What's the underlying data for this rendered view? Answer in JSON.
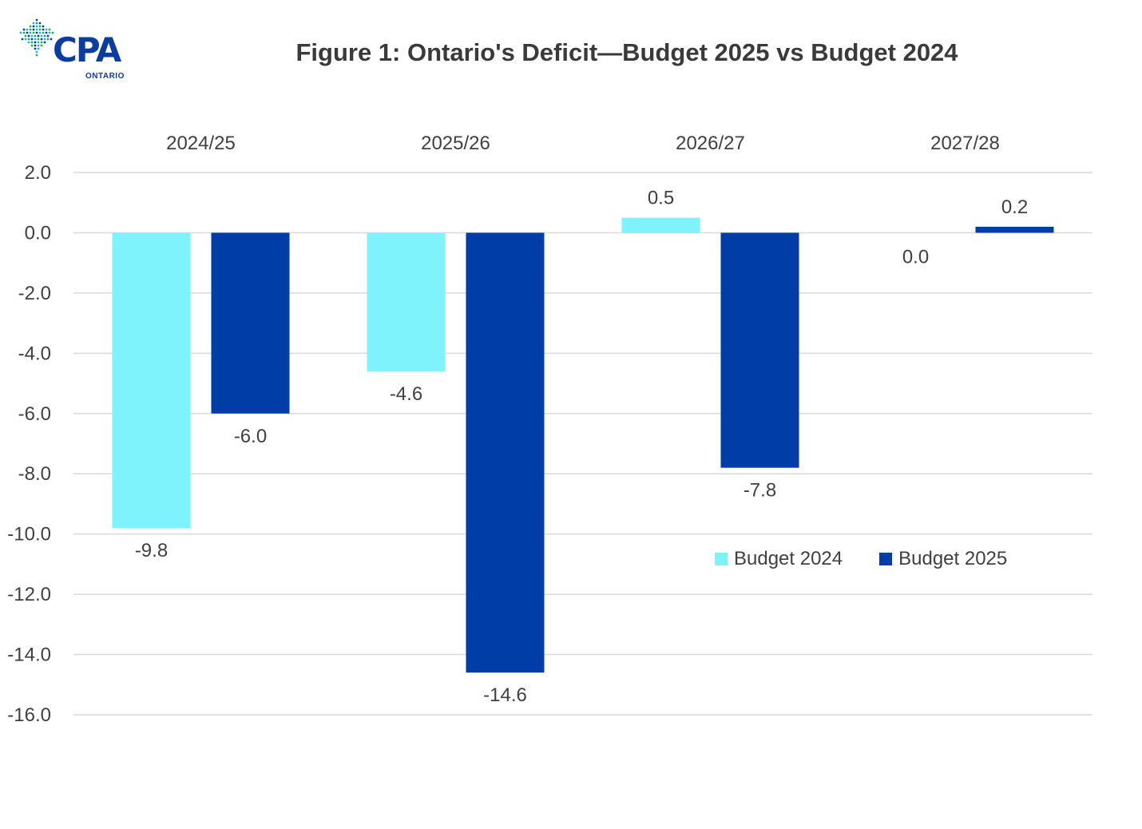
{
  "logo": {
    "text": "CPA",
    "subtext": "ONTARIO",
    "colors": [
      "#0a3d9e",
      "#1db4e8",
      "#2aa84a"
    ]
  },
  "chart_data": {
    "type": "bar",
    "title": "Figure 1: Ontario's Deficit—Budget 2025 vs Budget 2024",
    "categories": [
      "2024/25",
      "2025/26",
      "2026/27",
      "2027/28"
    ],
    "category_axis_position": "top",
    "series": [
      {
        "name": "Budget 2024",
        "color": "#7ff3fb",
        "values": [
          -9.8,
          -4.6,
          0.5,
          0.0
        ]
      },
      {
        "name": "Budget 2025",
        "color": "#003da6",
        "values": [
          -6.0,
          -14.6,
          -7.8,
          0.2
        ]
      }
    ],
    "data_labels": [
      [
        "-9.8",
        "-4.6",
        "0.5",
        "0.0"
      ],
      [
        "-6.0",
        "-14.6",
        "-7.8",
        "0.2"
      ]
    ],
    "ylim": [
      -16.0,
      2.0
    ],
    "yticks": [
      2.0,
      0.0,
      -2.0,
      -4.0,
      -6.0,
      -8.0,
      -10.0,
      -12.0,
      -14.0,
      -16.0
    ],
    "ytick_labels": [
      "2.0",
      "0.0",
      "-2.0",
      "-4.0",
      "-6.0",
      "-8.0",
      "-10.0",
      "-12.0",
      "-14.0",
      "-16.0"
    ],
    "grid": true,
    "legend_position": "lower-right"
  }
}
